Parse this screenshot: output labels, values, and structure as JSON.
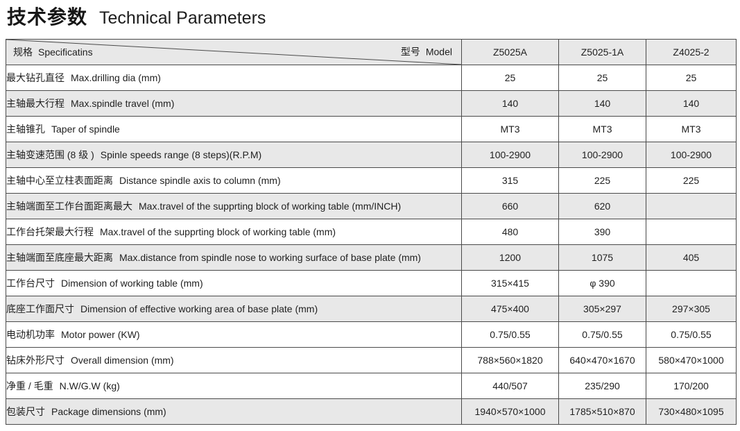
{
  "title": {
    "zh": "技术参数",
    "en": "Technical Parameters"
  },
  "colors": {
    "row_shade": "#e8e8e8",
    "border": "#4a4a4a",
    "text": "#1f1f1f"
  },
  "table": {
    "header": {
      "spec_zh": "规格",
      "spec_en": "Specificatins",
      "model_zh": "型号",
      "model_en": "Model",
      "models": [
        "Z5025A",
        "Z5025-1A",
        "Z4025-2"
      ]
    },
    "rows": [
      {
        "zh": "最大钻孔直径",
        "en": "Max.drilling dia (mm)",
        "values": [
          "25",
          "25",
          "25"
        ],
        "shaded": false
      },
      {
        "zh": "主轴最大行程",
        "en": "Max.spindle travel (mm)",
        "values": [
          "140",
          "140",
          "140"
        ],
        "shaded": true
      },
      {
        "zh": "主轴锥孔",
        "en": "Taper of spindle",
        "values": [
          "MT3",
          "MT3",
          "MT3"
        ],
        "shaded": false
      },
      {
        "zh": "主轴变速范围 (8 级 )",
        "en": "Spinle speeds range (8 steps)(R.P.M)",
        "values": [
          "100-2900",
          "100-2900",
          "100-2900"
        ],
        "shaded": true
      },
      {
        "zh": "主轴中心至立柱表面距离",
        "en": "Distance spindle axis to column (mm)",
        "values": [
          "315",
          "225",
          "225"
        ],
        "shaded": false
      },
      {
        "zh": "主轴端面至工作台面距离最大",
        "en": "Max.travel of the supprting block of working table (mm/INCH)",
        "values": [
          "660",
          "620",
          ""
        ],
        "shaded": true
      },
      {
        "zh": "工作台托架最大行程",
        "en": "Max.travel of the supprting block of working table (mm)",
        "values": [
          "480",
          "390",
          ""
        ],
        "shaded": false
      },
      {
        "zh": "主轴端面至底座最大距离",
        "en": "Max.distance from spindle nose to working surface of base plate (mm)",
        "values": [
          "1200",
          "1075",
          "405"
        ],
        "shaded": true
      },
      {
        "zh": "工作台尺寸",
        "en": "Dimension of working table (mm)",
        "values": [
          "315×415",
          "φ 390",
          ""
        ],
        "shaded": false
      },
      {
        "zh": "底座工作面尺寸",
        "en": "Dimension of effective working area of base plate (mm)",
        "values": [
          "475×400",
          "305×297",
          "297×305"
        ],
        "shaded": true
      },
      {
        "zh": "电动机功率",
        "en": "Motor power (KW)",
        "values": [
          "0.75/0.55",
          "0.75/0.55",
          "0.75/0.55"
        ],
        "shaded": false
      },
      {
        "zh": "钻床外形尺寸",
        "en": "Overall dimension (mm)",
        "values": [
          "788×560×1820",
          "640×470×1670",
          "580×470×1000"
        ],
        "shaded": false
      },
      {
        "zh": "净重 / 毛重",
        "en": "N.W/G.W (kg)",
        "values": [
          "440/507",
          "235/290",
          "170/200"
        ],
        "shaded": false
      },
      {
        "zh": "包装尺寸",
        "en": "Package dimensions (mm)",
        "values": [
          "1940×570×1000",
          "1785×510×870",
          "730×480×1095"
        ],
        "shaded": true
      }
    ]
  }
}
